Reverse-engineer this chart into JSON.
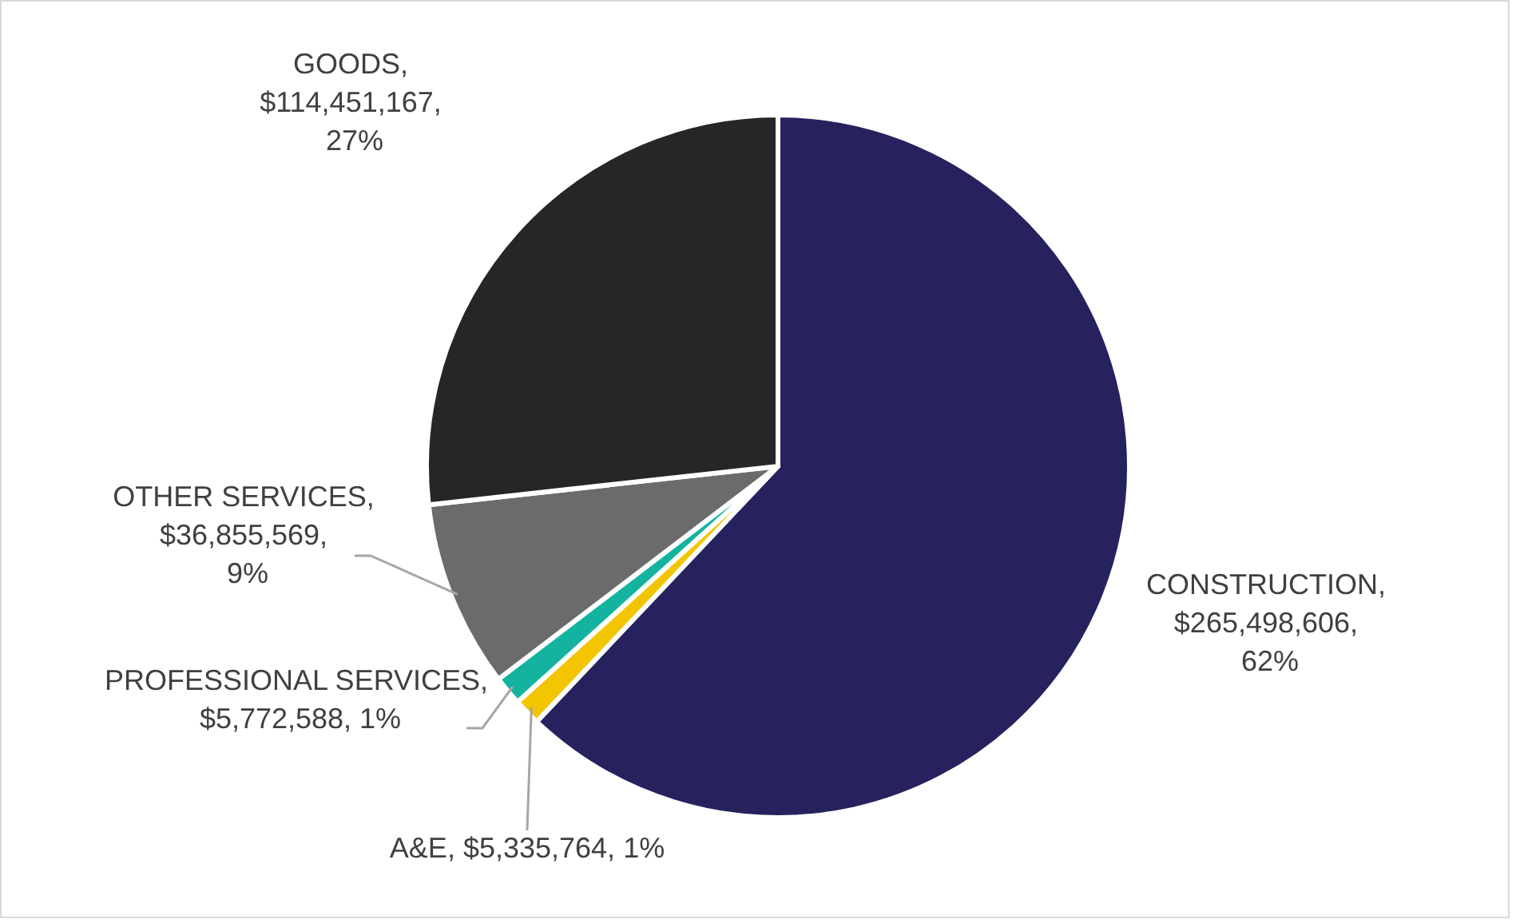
{
  "chart_data": {
    "type": "pie",
    "categories": [
      "CONSTRUCTION",
      "A&E",
      "PROFESSIONAL SERVICES",
      "OTHER SERVICES",
      "GOODS"
    ],
    "values": [
      265498606,
      5335764,
      5772588,
      36855569,
      114451167
    ],
    "colors": [
      "#26225e",
      "#f2c500",
      "#14b3a0",
      "#6b6b6b",
      "#262626"
    ],
    "value_labels": [
      ", $265,498,606, 62%",
      ", $5,335,764, 1%",
      ", $5,772,588, 1%",
      ", $36,855,569, 9%",
      ", $114,451,167, 27%"
    ],
    "legend": false
  }
}
